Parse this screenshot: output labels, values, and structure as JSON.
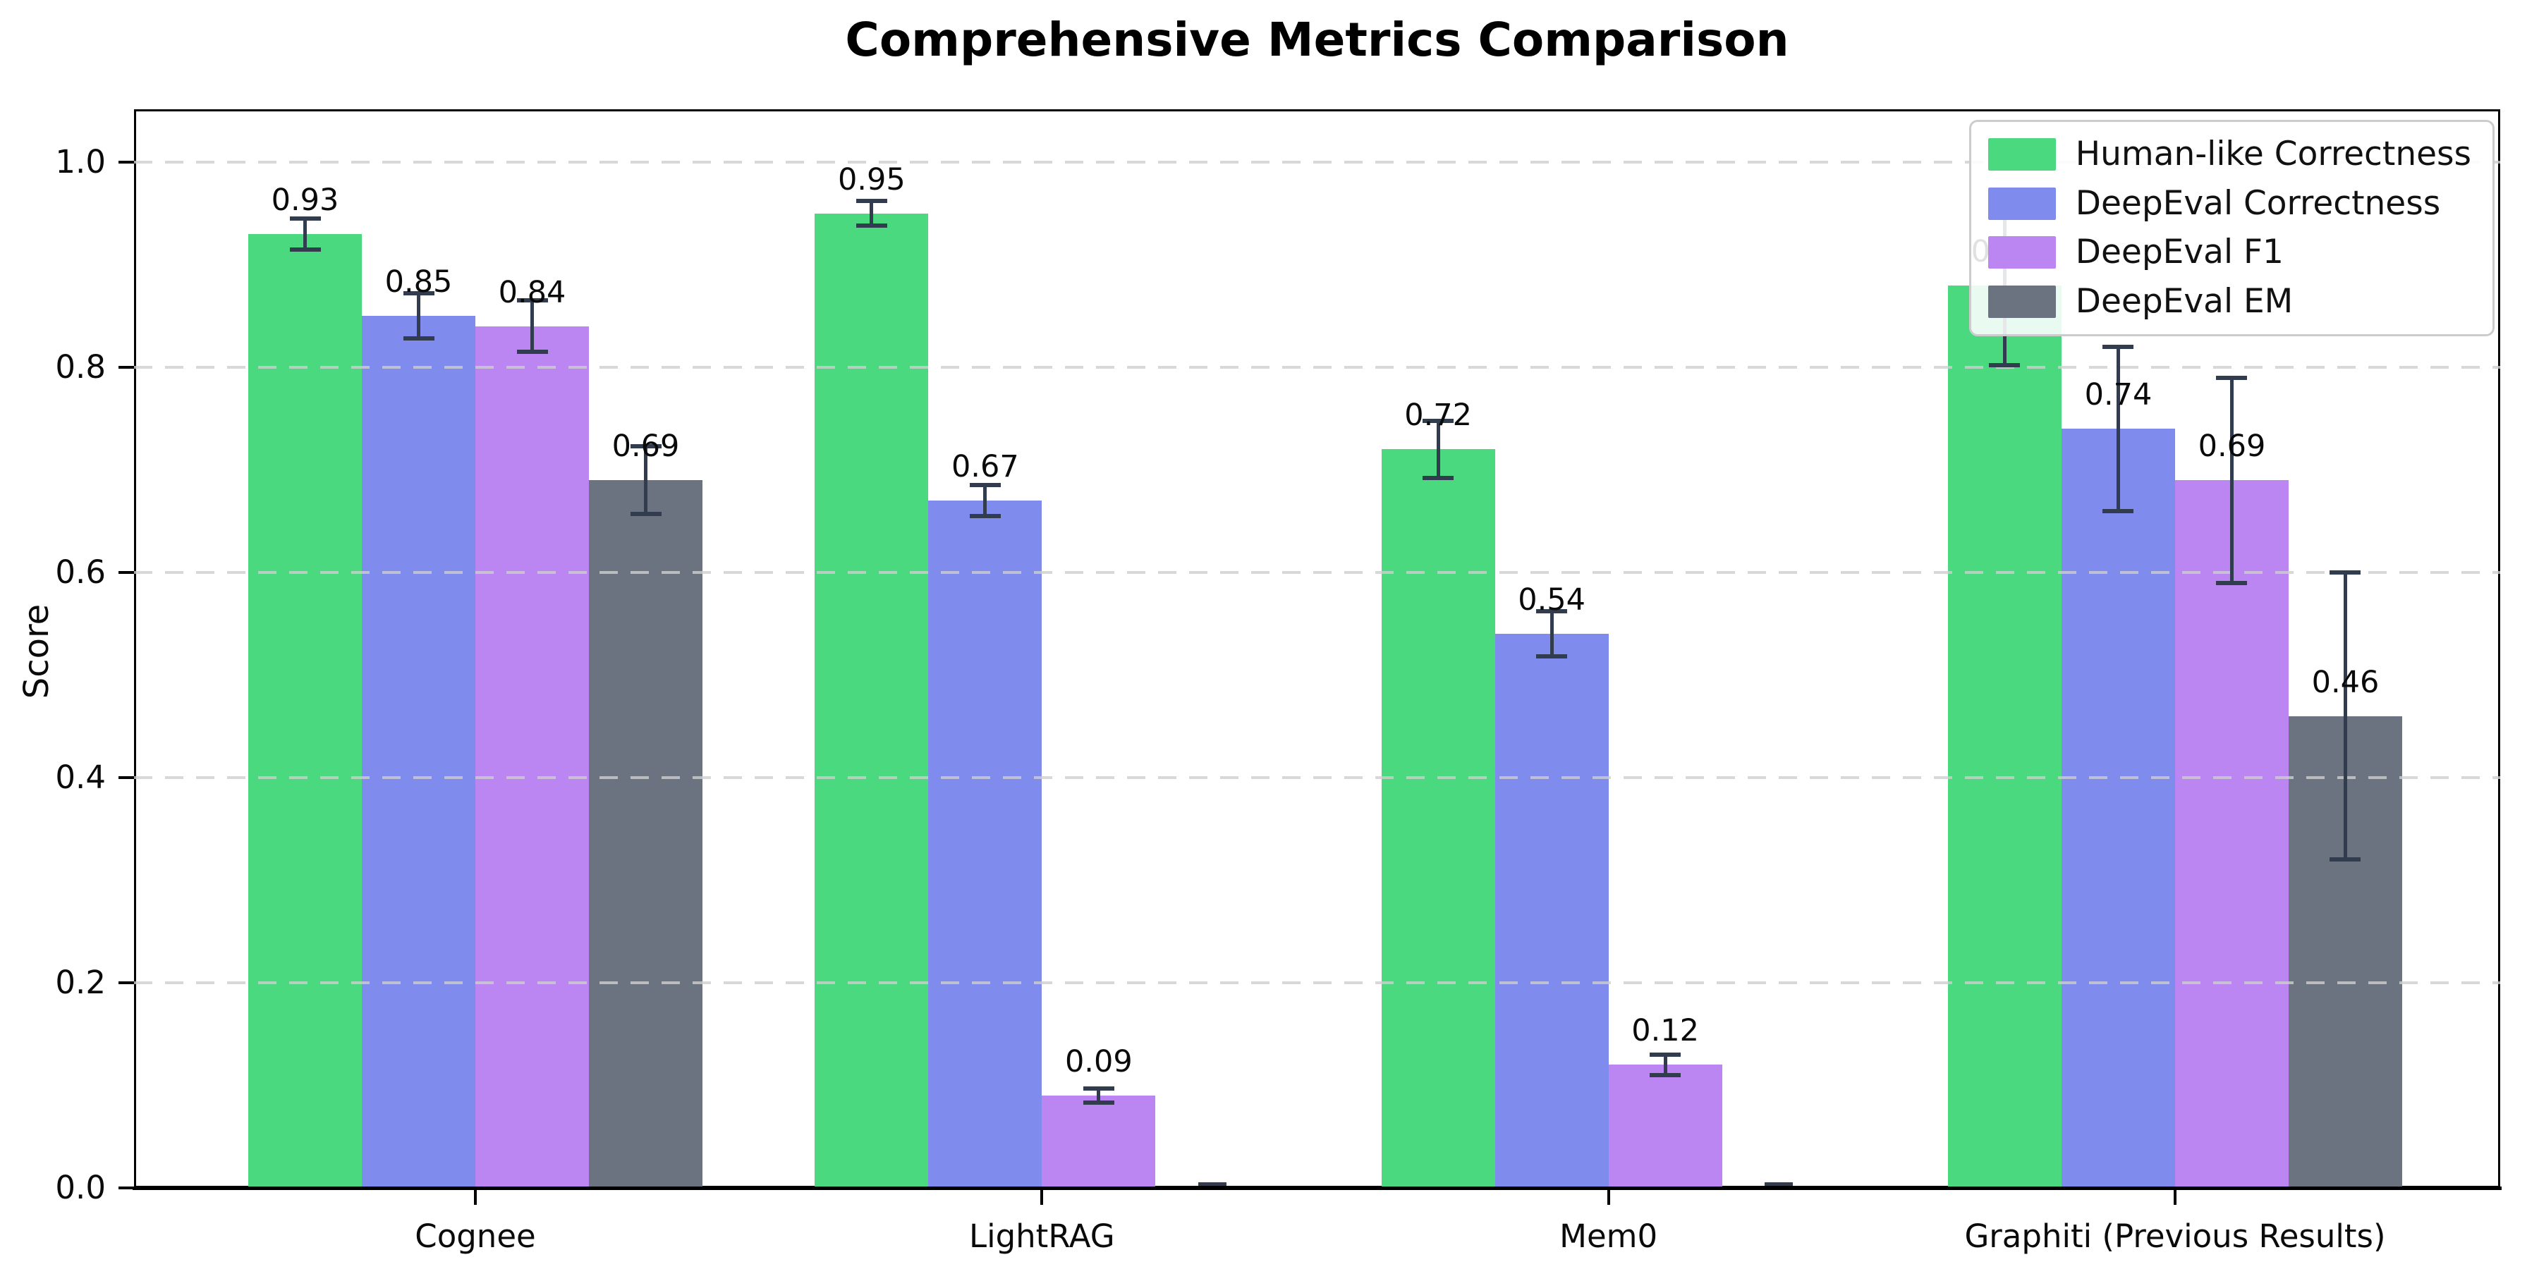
{
  "chart_data": {
    "type": "bar",
    "title": "Comprehensive Metrics Comparison",
    "ylabel": "Score",
    "xlabel": "",
    "categories": [
      "Cognee",
      "LightRAG",
      "Mem0",
      "Graphiti (Previous Results)"
    ],
    "series": [
      {
        "name": "Human-like Correctness",
        "color": "#4bd980",
        "values": [
          0.93,
          0.95,
          0.72,
          0.88
        ],
        "errors": [
          0.015,
          0.012,
          0.028,
          0.078
        ]
      },
      {
        "name": "DeepEval Correctness",
        "color": "#7f8cee",
        "values": [
          0.85,
          0.67,
          0.54,
          0.74
        ],
        "errors": [
          0.022,
          0.015,
          0.022,
          0.08
        ]
      },
      {
        "name": "DeepEval F1",
        "color": "#bb86f2",
        "values": [
          0.84,
          0.09,
          0.12,
          0.69
        ],
        "errors": [
          0.025,
          0.007,
          0.01,
          0.1
        ]
      },
      {
        "name": "DeepEval EM",
        "color": "#6b7280",
        "values": [
          0.69,
          0.0,
          0.0,
          0.46
        ],
        "errors": [
          0.033,
          0.002,
          0.002,
          0.14
        ]
      }
    ],
    "bar_value_labels": {
      "format": "2-decimals",
      "shown_for_zero_bars": false
    },
    "error_bar_color": "#313c4e",
    "yticks": [
      {
        "value": 0.0,
        "label": "0.0"
      },
      {
        "value": 0.2,
        "label": "0.2"
      },
      {
        "value": 0.4,
        "label": "0.4"
      },
      {
        "value": 0.6,
        "label": "0.6"
      },
      {
        "value": 0.8,
        "label": "0.8"
      },
      {
        "value": 1.0,
        "label": "1.0"
      }
    ],
    "ylim": [
      0,
      1.05
    ],
    "grid": "dashed-horizontal",
    "legend_position": "upper-right"
  }
}
